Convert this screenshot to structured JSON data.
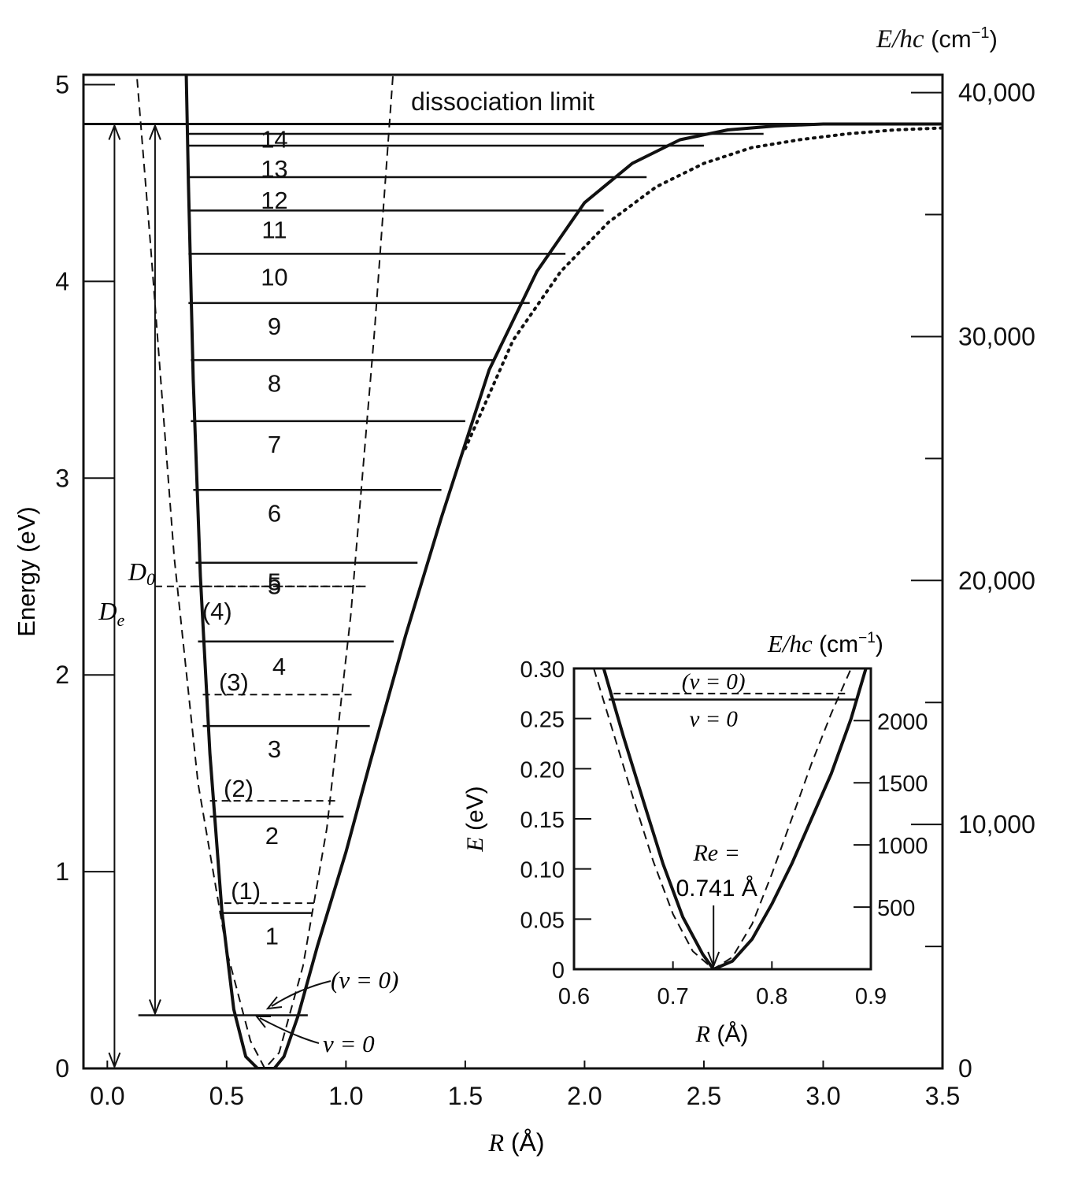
{
  "chart_data": [
    {
      "type": "line",
      "xlabel": "R (Å)",
      "ylabel": "Energy (eV)",
      "y2label": "E/hc (cm⁻¹)",
      "xlim": [
        -0.1,
        3.5
      ],
      "ylim": [
        0,
        5.05
      ],
      "y2lim": [
        0,
        40730
      ],
      "x_ticks": [
        "0.0",
        "0.5",
        "1.0",
        "1.5",
        "2.0",
        "2.5",
        "3.0",
        "3.5"
      ],
      "y_ticks": [
        "0",
        "1",
        "2",
        "3",
        "4",
        "5"
      ],
      "y2_ticks": [
        "0",
        "10,000",
        "20,000",
        "30,000",
        "40,000"
      ],
      "grid": false,
      "dissociation_label": "dissociation limit",
      "dissociation_energy_eV": 4.8,
      "D0_label": "D0",
      "De_label": "De",
      "D0_base_eV": 0.27,
      "series": [
        {
          "style": "solid",
          "x": [
            0.33,
            0.34,
            0.36,
            0.39,
            0.43,
            0.48,
            0.53,
            0.58,
            0.63,
            0.66,
            0.7,
            0.74,
            0.8,
            0.88,
            1.0,
            1.1,
            1.25,
            1.4,
            1.6,
            1.8,
            2.0,
            2.2,
            2.4,
            2.6,
            2.8,
            3.0,
            3.2,
            3.5
          ],
          "y": [
            5.1,
            4.5,
            3.5,
            2.5,
            1.6,
            0.8,
            0.3,
            0.06,
            0.0,
            0.0,
            0.0,
            0.06,
            0.27,
            0.62,
            1.1,
            1.55,
            2.2,
            2.8,
            3.55,
            4.05,
            4.4,
            4.6,
            4.72,
            4.77,
            4.79,
            4.8,
            4.8,
            4.8
          ]
        },
        {
          "style": "dotted",
          "x": [
            1.5,
            1.7,
            1.9,
            2.1,
            2.3,
            2.5,
            2.7,
            2.9,
            3.1,
            3.3,
            3.5
          ],
          "y": [
            3.15,
            3.7,
            4.05,
            4.3,
            4.48,
            4.6,
            4.68,
            4.72,
            4.75,
            4.77,
            4.78
          ]
        },
        {
          "style": "dashed",
          "x": [
            0.12,
            0.18,
            0.28,
            0.38,
            0.5,
            0.6,
            0.66,
            0.72,
            0.82,
            0.92,
            1.02,
            1.12,
            1.2
          ],
          "y": [
            5.1,
            4.2,
            2.6,
            1.45,
            0.6,
            0.14,
            0.0,
            0.08,
            0.52,
            1.22,
            2.3,
            3.75,
            5.1
          ]
        }
      ],
      "levels": [
        {
          "label": "1",
          "E": 0.79,
          "x1": 0.47,
          "x2": 0.86,
          "lx": 0.69,
          "ly": 0.67
        },
        {
          "label": "2",
          "E": 1.28,
          "x1": 0.43,
          "x2": 0.99,
          "lx": 0.69,
          "ly": 1.18
        },
        {
          "label": "3",
          "E": 1.74,
          "x1": 0.4,
          "x2": 1.1,
          "lx": 0.7,
          "ly": 1.62
        },
        {
          "label": "4",
          "E": 2.17,
          "x1": 0.38,
          "x2": 1.2,
          "lx": 0.72,
          "ly": 2.04
        },
        {
          "label": "5",
          "E": 2.57,
          "x1": 0.37,
          "x2": 1.3,
          "lx": 0.7,
          "ly": 2.47
        },
        {
          "label": "6",
          "E": 2.94,
          "x1": 0.36,
          "x2": 1.4,
          "lx": 0.7,
          "ly": 2.82
        },
        {
          "label": "7",
          "E": 3.29,
          "x1": 0.35,
          "x2": 1.5,
          "lx": 0.7,
          "ly": 3.17
        },
        {
          "label": "8",
          "E": 3.6,
          "x1": 0.35,
          "x2": 1.62,
          "lx": 0.7,
          "ly": 3.48
        },
        {
          "label": "9",
          "E": 3.89,
          "x1": 0.34,
          "x2": 1.77,
          "lx": 0.7,
          "ly": 3.77
        },
        {
          "label": "10",
          "E": 4.14,
          "x1": 0.34,
          "x2": 1.92,
          "lx": 0.7,
          "ly": 4.02
        },
        {
          "label": "11",
          "E": 4.36,
          "x1": 0.34,
          "x2": 2.08,
          "lx": 0.7,
          "ly": 4.26
        },
        {
          "label": "12",
          "E": 4.53,
          "x1": 0.34,
          "x2": 2.26,
          "lx": 0.7,
          "ly": 4.41
        },
        {
          "label": "13",
          "E": 4.69,
          "x1": 0.34,
          "x2": 2.5,
          "lx": 0.7,
          "ly": 4.57
        },
        {
          "label": "14",
          "E": 4.75,
          "x1": 0.34,
          "x2": 2.75,
          "lx": 0.7,
          "ly": 4.72
        }
      ],
      "dashed_levels": [
        {
          "label": "(1)",
          "E": 0.84,
          "x1": 0.49,
          "x2": 0.88,
          "lx": 0.58,
          "ly": 0.9
        },
        {
          "label": "(2)",
          "E": 1.36,
          "x1": 0.43,
          "x2": 0.96,
          "lx": 0.55,
          "ly": 1.42
        },
        {
          "label": "(3)",
          "E": 1.9,
          "x1": 0.4,
          "x2": 1.04,
          "lx": 0.53,
          "ly": 1.96
        },
        {
          "label": "(4)",
          "E": 2.45,
          "x1": 0.36,
          "x2": 1.1,
          "lx": 0.46,
          "ly": 2.32
        }
      ],
      "ground_level": {
        "E": 0.27,
        "x1": 0.13,
        "x2": 0.84
      },
      "labels": {
        "v0_dashed": "(v = 0)",
        "v0_solid": "v = 0",
        "dashed_5": "5"
      }
    },
    {
      "type": "line",
      "xlabel": "R (Å)",
      "ylabel": "E (eV)",
      "y2label": "E/hc (cm⁻¹)",
      "xlim": [
        0.6,
        0.9
      ],
      "ylim": [
        0,
        0.3
      ],
      "x_ticks": [
        "0.6",
        "0.7",
        "0.8",
        "0.9"
      ],
      "y_ticks": [
        "0",
        "0.05",
        "0.10",
        "0.15",
        "0.20",
        "0.25",
        "0.30"
      ],
      "y2_ticks": [
        "500",
        "1000",
        "1500",
        "2000"
      ],
      "grid": false,
      "series": [
        {
          "style": "solid",
          "x": [
            0.63,
            0.65,
            0.67,
            0.69,
            0.71,
            0.73,
            0.741,
            0.76,
            0.78,
            0.8,
            0.82,
            0.84,
            0.86,
            0.88,
            0.895
          ],
          "y": [
            0.3,
            0.232,
            0.168,
            0.105,
            0.052,
            0.015,
            0.0,
            0.008,
            0.03,
            0.065,
            0.105,
            0.15,
            0.195,
            0.25,
            0.3
          ]
        },
        {
          "style": "dashed",
          "x": [
            0.62,
            0.64,
            0.66,
            0.68,
            0.7,
            0.72,
            0.741,
            0.76,
            0.78,
            0.8,
            0.82,
            0.84,
            0.86,
            0.88
          ],
          "y": [
            0.3,
            0.235,
            0.17,
            0.108,
            0.055,
            0.018,
            0.0,
            0.012,
            0.045,
            0.095,
            0.15,
            0.205,
            0.255,
            0.3
          ]
        }
      ],
      "levels": [
        {
          "label": "v = 0",
          "E": 0.269,
          "style": "solid"
        },
        {
          "label": "(v = 0)",
          "E": 0.275,
          "style": "dashed"
        }
      ],
      "annotation": {
        "label_1": "Re =",
        "label_2": "0.741 Å",
        "x": 0.741
      }
    }
  ]
}
